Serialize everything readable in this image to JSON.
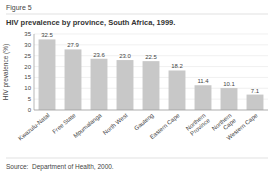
{
  "chart_data": {
    "type": "bar",
    "title": "HIV prevalence by province, South Africa, 1999.",
    "annotations": [
      "Figure 5",
      "Source:  Department of Health, 2000."
    ],
    "ylabel": "HIV prevalence (%)",
    "categories": [
      "Kwazulu-Natal",
      "Free State",
      "Mpumalanga",
      "North West",
      "Gauteng",
      "Eastern Cape",
      "Northern\nProvince",
      "Northern\nCape",
      "Western Cape"
    ],
    "values": [
      32.5,
      27.9,
      23.6,
      23.0,
      22.5,
      18.2,
      11.4,
      10.1,
      7.1
    ],
    "value_labels": [
      "32.5",
      "27.9",
      "23.6",
      "23.0",
      "22.5",
      "18.2",
      "11.4",
      "10.1",
      "7.1"
    ],
    "color": "#c8c8c8",
    "ylim": [
      0,
      35
    ],
    "yticks": [
      0,
      5,
      10,
      15,
      20,
      25,
      30,
      35
    ],
    "grid": true,
    "data_labels": true
  }
}
